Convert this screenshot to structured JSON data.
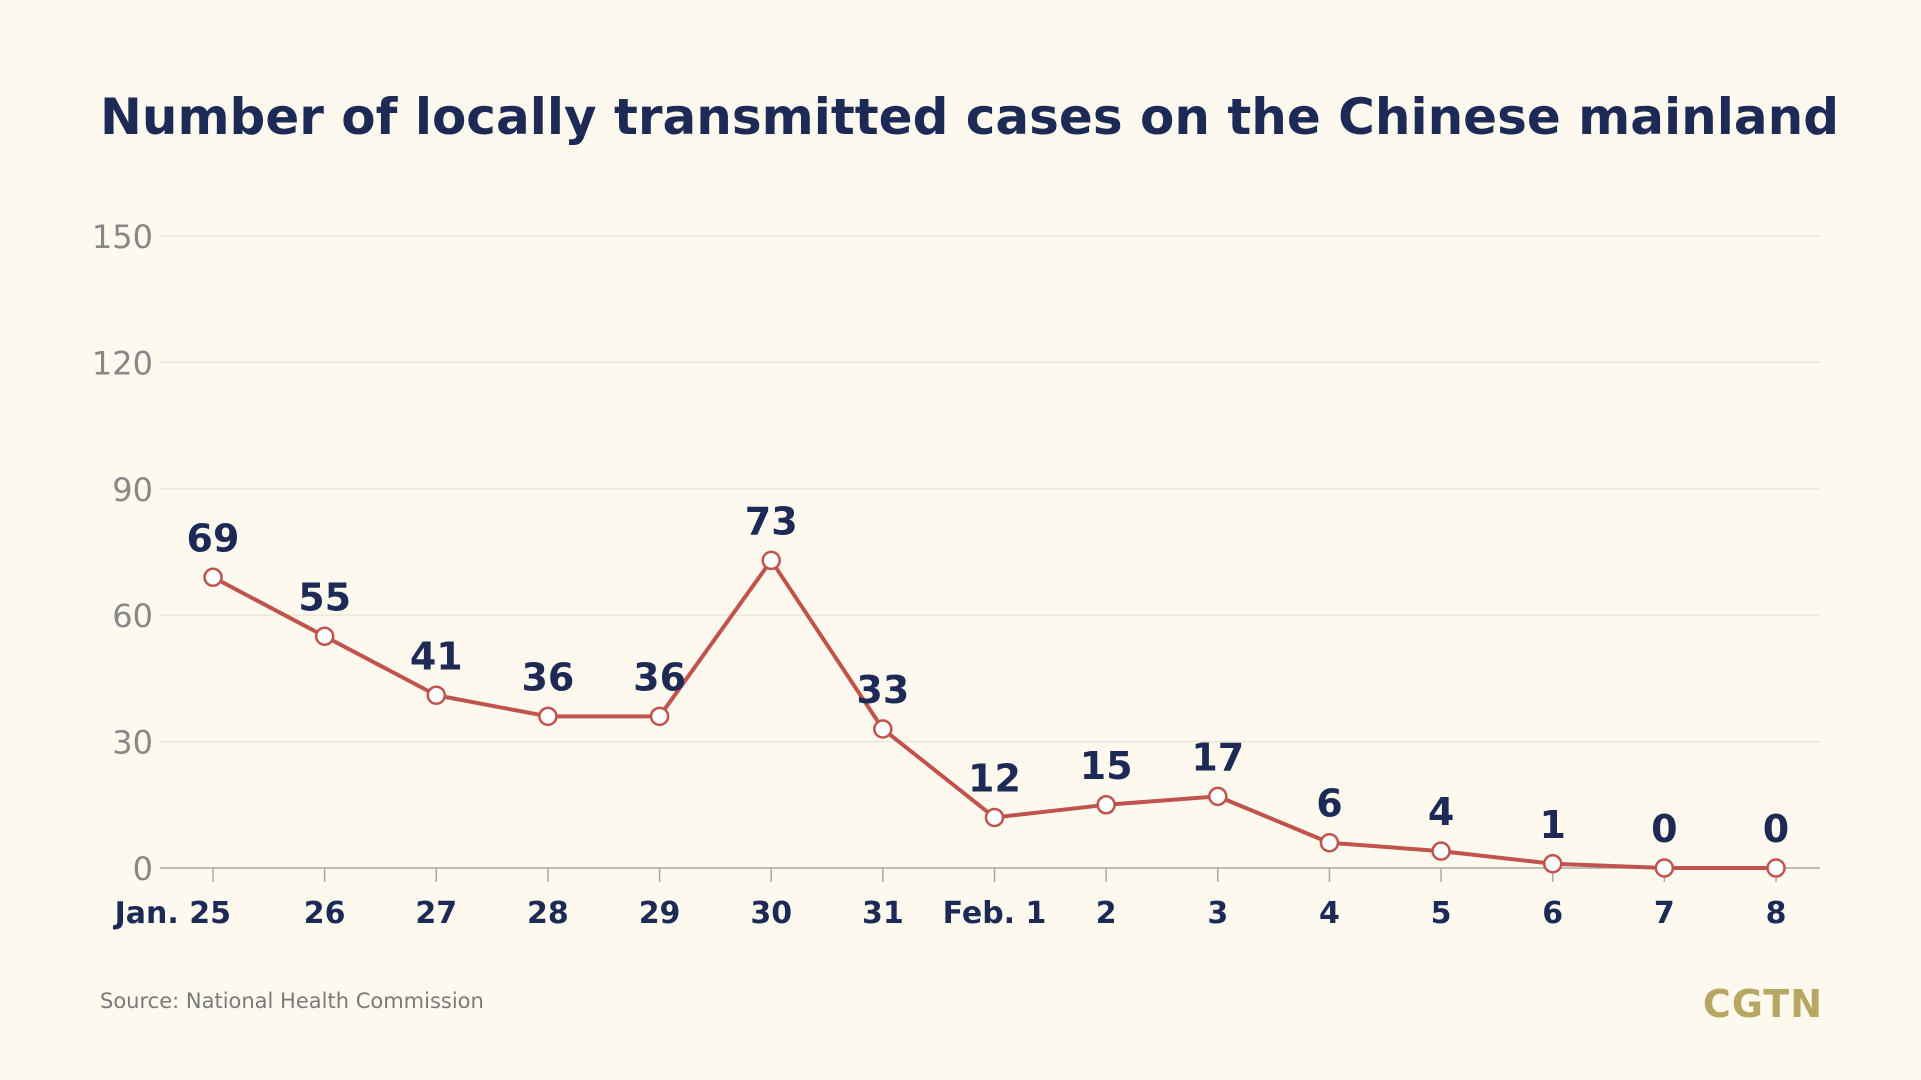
{
  "title": "Number of locally transmitted cases on the Chinese mainland",
  "source": "Source: National Health Commission",
  "logo": "CGTN",
  "colors": {
    "background": "#fdf9ef",
    "title": "#1d2a55",
    "line": "#c0534b",
    "axis_text": "#888888",
    "logo": "#b8a762"
  },
  "chart_data": {
    "type": "line",
    "title": "Number of locally transmitted cases on the Chinese mainland",
    "xlabel": "",
    "ylabel": "",
    "ylim": [
      0,
      150
    ],
    "yticks": [
      "0",
      "30",
      "60",
      "90",
      "120",
      "150"
    ],
    "grid": true,
    "categories": [
      "Jan. 25",
      "26",
      "27",
      "28",
      "29",
      "30",
      "31",
      "Feb. 1",
      "2",
      "3",
      "4",
      "5",
      "6",
      "7",
      "8"
    ],
    "series": [
      {
        "values": [
          69,
          55,
          41,
          36,
          36,
          73,
          33,
          12,
          15,
          17,
          6,
          4,
          1,
          0,
          0
        ]
      }
    ]
  }
}
